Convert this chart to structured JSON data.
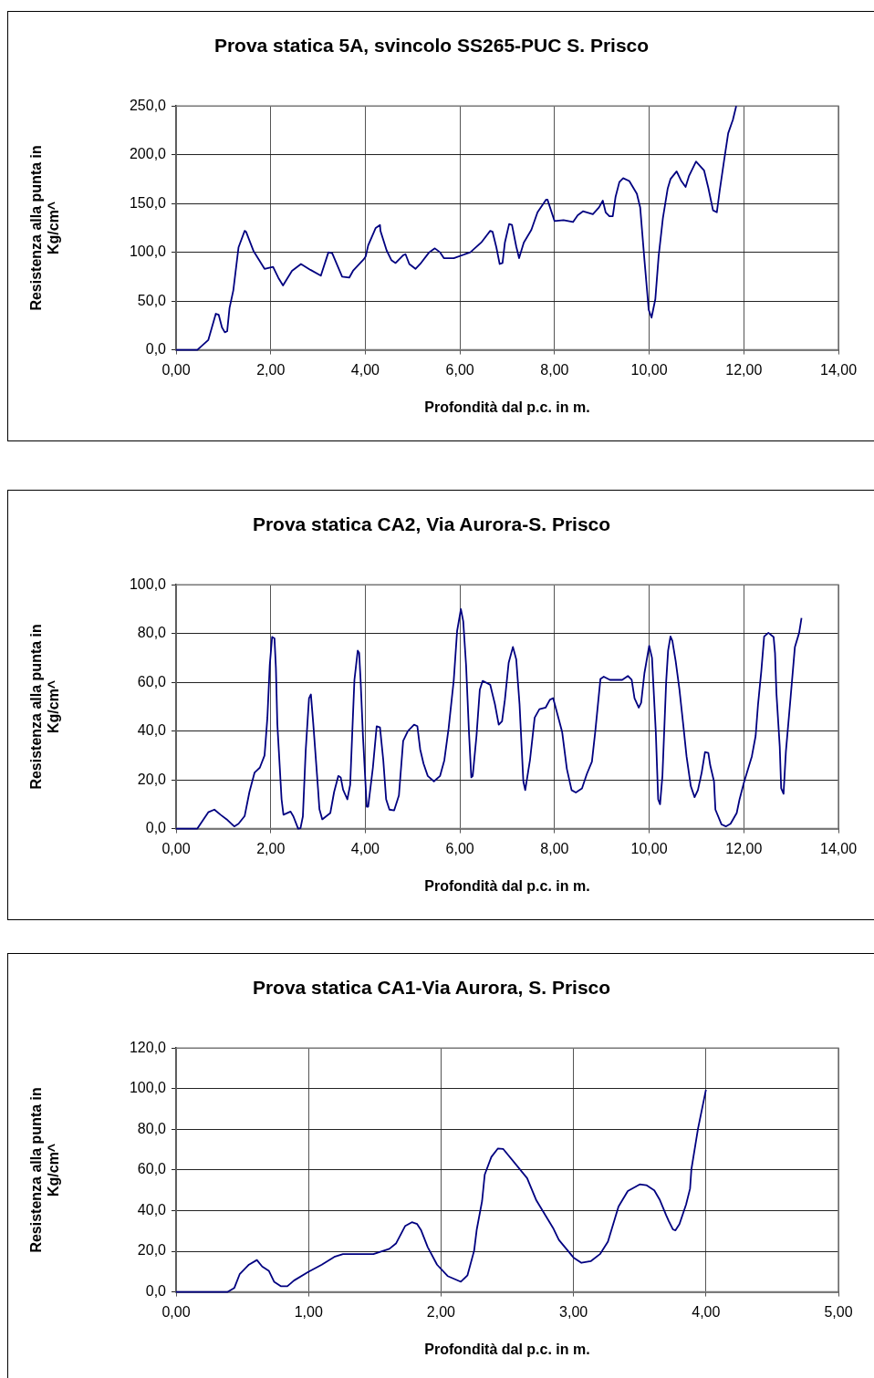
{
  "chart_data": [
    {
      "type": "line",
      "title": "Prova statica 5A, svincolo SS265-PUC S. Prisco",
      "xlabel": "Profondità dal p.c. in m.",
      "ylabel": "Resistenza alla punta in Kg/cm^",
      "color": "#000080",
      "marker": "none",
      "grid": true,
      "x": [
        0,
        0.45,
        0.68,
        0.84,
        0.9,
        0.97,
        1.03,
        1.08,
        1.13,
        1.21,
        1.32,
        1.45,
        1.48,
        1.64,
        1.87,
        2.05,
        2.16,
        2.26,
        2.45,
        2.64,
        2.84,
        3.06,
        3.22,
        3.3,
        3.51,
        3.66,
        3.74,
        3.97,
        4.01,
        4.06,
        4.22,
        4.31,
        4.32,
        4.45,
        4.55,
        4.64,
        4.8,
        4.85,
        4.93,
        5.06,
        5.16,
        5.35,
        5.47,
        5.58,
        5.66,
        5.87,
        6.22,
        6.45,
        6.64,
        6.69,
        6.77,
        6.84,
        6.9,
        6.95,
        7.04,
        7.1,
        7.19,
        7.25,
        7.35,
        7.51,
        7.64,
        7.82,
        7.85,
        8.0,
        8.19,
        8.39,
        8.49,
        8.6,
        8.81,
        8.94,
        9.02,
        9.08,
        9.16,
        9.23,
        9.29,
        9.37,
        9.45,
        9.58,
        9.74,
        9.81,
        9.9,
        9.99,
        10.05,
        10.13,
        10.2,
        10.29,
        10.39,
        10.45,
        10.58,
        10.68,
        10.77,
        10.84,
        10.99,
        11.16,
        11.25,
        11.35,
        11.43,
        11.49,
        11.58,
        11.67,
        11.77,
        11.84
      ],
      "values": [
        0,
        0,
        10,
        37,
        36,
        23,
        18,
        19,
        43,
        61,
        105,
        122,
        121,
        101,
        83,
        85,
        74,
        66,
        81,
        88,
        82,
        76,
        100,
        99,
        75,
        74,
        81,
        93,
        96,
        107,
        125,
        128,
        122,
        102,
        92,
        89,
        97,
        98,
        88,
        83,
        88,
        100,
        104,
        100,
        94,
        94,
        100,
        110,
        122,
        121,
        105,
        88,
        89,
        110,
        129,
        128,
        106,
        94,
        110,
        123,
        141,
        154,
        154,
        132,
        133,
        131,
        138,
        142,
        139,
        146,
        153,
        141,
        137,
        137,
        157,
        172,
        176,
        173,
        160,
        146,
        92,
        41,
        33,
        52,
        96,
        135,
        165,
        175,
        183,
        173,
        167,
        178,
        193,
        184,
        166,
        143,
        141,
        163,
        193,
        222,
        236,
        250
      ],
      "xlim": [
        0,
        14
      ],
      "xticks": [
        {
          "value": 0,
          "label": "0,00"
        },
        {
          "value": 2,
          "label": "2,00"
        },
        {
          "value": 4,
          "label": "4,00"
        },
        {
          "value": 6,
          "label": "6,00"
        },
        {
          "value": 8,
          "label": "8,00"
        },
        {
          "value": 10,
          "label": "10,00"
        },
        {
          "value": 12,
          "label": "12,00"
        },
        {
          "value": 14,
          "label": "14,00"
        }
      ],
      "ylim": [
        0,
        250
      ],
      "yticks": [
        {
          "value": 0,
          "label": "0,0"
        },
        {
          "value": 50,
          "label": "50,0"
        },
        {
          "value": 100,
          "label": "100,0"
        },
        {
          "value": 150,
          "label": "150,0"
        },
        {
          "value": 200,
          "label": "200,0"
        },
        {
          "value": 250,
          "label": "250,0"
        }
      ]
    },
    {
      "type": "line",
      "title": "Prova statica CA2, Via Aurora-S. Prisco",
      "xlabel": "Profondità dal p.c. in m.",
      "ylabel": "Resistenza alla punta in Kg/cm^",
      "color": "#000080",
      "marker": "none",
      "grid": true,
      "x": [
        0,
        0.45,
        0.68,
        0.81,
        0.94,
        1.07,
        1.23,
        1.32,
        1.45,
        1.55,
        1.66,
        1.77,
        1.87,
        1.89,
        1.93,
        1.98,
        2.03,
        2.08,
        2.11,
        2.14,
        2.23,
        2.27,
        2.42,
        2.48,
        2.58,
        2.63,
        2.68,
        2.74,
        2.81,
        2.85,
        2.9,
        3.0,
        3.03,
        3.09,
        3.26,
        3.34,
        3.43,
        3.48,
        3.53,
        3.62,
        3.68,
        3.74,
        3.77,
        3.84,
        3.87,
        3.9,
        3.95,
        4.03,
        4.06,
        4.16,
        4.24,
        4.31,
        4.38,
        4.44,
        4.51,
        4.61,
        4.71,
        4.8,
        4.9,
        5.03,
        5.1,
        5.16,
        5.23,
        5.32,
        5.45,
        5.58,
        5.67,
        5.76,
        5.87,
        5.94,
        6.02,
        6.07,
        6.13,
        6.19,
        6.24,
        6.27,
        6.35,
        6.42,
        6.48,
        6.64,
        6.74,
        6.82,
        6.89,
        6.95,
        7.03,
        7.12,
        7.19,
        7.26,
        7.34,
        7.38,
        7.48,
        7.58,
        7.68,
        7.81,
        7.9,
        7.97,
        8.06,
        8.16,
        8.26,
        8.36,
        8.45,
        8.58,
        8.68,
        8.79,
        8.86,
        8.97,
        9.04,
        9.17,
        9.43,
        9.55,
        9.63,
        9.69,
        9.78,
        9.83,
        9.9,
        10.0,
        10.06,
        10.14,
        10.19,
        10.23,
        10.28,
        10.36,
        10.4,
        10.45,
        10.49,
        10.56,
        10.64,
        10.72,
        10.79,
        10.88,
        10.96,
        11.03,
        11.11,
        11.18,
        11.25,
        11.29,
        11.37,
        11.4,
        11.53,
        11.62,
        11.72,
        11.85,
        11.91,
        12.01,
        12.17,
        12.25,
        12.3,
        12.37,
        12.43,
        12.52,
        12.63,
        12.66,
        12.69,
        12.76,
        12.79,
        12.84,
        12.89,
        12.99,
        13.08,
        13.17,
        13.22
      ],
      "values": [
        0,
        0,
        6.7,
        7.8,
        5.7,
        3.8,
        0.9,
        2,
        5.2,
        15,
        23,
        25,
        30,
        35,
        45.5,
        67,
        78.6,
        78,
        66,
        43,
        12,
        5.7,
        7,
        5,
        0,
        0.2,
        5,
        32,
        53.5,
        55,
        43,
        16.5,
        8,
        3.8,
        6.4,
        15,
        21.6,
        21,
        16,
        12,
        18,
        47,
        61,
        73,
        72,
        61,
        38,
        9,
        9,
        25,
        42,
        41.5,
        28,
        12,
        7.8,
        7.5,
        13.6,
        36,
        40,
        42.6,
        42,
        32.5,
        26.7,
        21.6,
        19.4,
        21.6,
        28,
        41,
        61,
        81,
        90,
        85,
        67,
        40,
        21,
        21.6,
        38,
        57,
        60.6,
        59,
        51,
        42.6,
        44,
        52.8,
        68,
        74.5,
        69.4,
        51,
        19.4,
        15.8,
        28,
        45.5,
        49,
        49.6,
        52.8,
        53.5,
        47,
        39.7,
        24.5,
        15.8,
        14.8,
        16.5,
        22.3,
        27.5,
        39.7,
        61.4,
        62.3,
        61,
        61,
        62.6,
        61,
        53.5,
        49.6,
        51.6,
        63.8,
        75,
        70,
        39.7,
        12,
        10,
        21.6,
        60.6,
        73,
        78.8,
        77,
        68.7,
        57,
        42.6,
        29.6,
        17.4,
        12.9,
        15.8,
        23,
        31.4,
        31,
        26,
        19.4,
        7.8,
        1.7,
        0.9,
        2,
        6.4,
        12,
        19.4,
        29.6,
        38,
        50.7,
        64.6,
        78.8,
        80.3,
        78.6,
        72,
        55.5,
        33.6,
        16.5,
        14.3,
        31.7,
        54,
        74.5,
        80.3,
        86.4
      ],
      "xlim": [
        0,
        14
      ],
      "xticks": [
        {
          "value": 0,
          "label": "0,00"
        },
        {
          "value": 2,
          "label": "2,00"
        },
        {
          "value": 4,
          "label": "4,00"
        },
        {
          "value": 6,
          "label": "6,00"
        },
        {
          "value": 8,
          "label": "8,00"
        },
        {
          "value": 10,
          "label": "10,00"
        },
        {
          "value": 12,
          "label": "12,00"
        },
        {
          "value": 14,
          "label": "14,00"
        }
      ],
      "ylim": [
        0,
        100
      ],
      "yticks": [
        {
          "value": 0,
          "label": "0,0"
        },
        {
          "value": 20,
          "label": "20,0"
        },
        {
          "value": 40,
          "label": "40,0"
        },
        {
          "value": 60,
          "label": "60,0"
        },
        {
          "value": 80,
          "label": "80,0"
        },
        {
          "value": 100,
          "label": "100,0"
        }
      ]
    },
    {
      "type": "line",
      "title": "Prova statica CA1-Via Aurora, S. Prisco",
      "xlabel": "Profondità dal p.c. in m.",
      "ylabel": "Resistenza alla punta in Kg/cm^",
      "color": "#000080",
      "marker": "none",
      "grid": true,
      "x": [
        0,
        0.39,
        0.44,
        0.48,
        0.55,
        0.61,
        0.65,
        0.7,
        0.74,
        0.79,
        0.84,
        0.89,
        1.0,
        1.1,
        1.2,
        1.26,
        1.49,
        1.61,
        1.66,
        1.73,
        1.78,
        1.82,
        1.85,
        1.9,
        1.97,
        2.05,
        2.15,
        2.2,
        2.25,
        2.27,
        2.31,
        2.33,
        2.38,
        2.43,
        2.47,
        2.65,
        2.72,
        2.85,
        2.89,
        3.0,
        3.06,
        3.13,
        3.2,
        3.26,
        3.34,
        3.41,
        3.5,
        3.55,
        3.61,
        3.65,
        3.7,
        3.72,
        3.75,
        3.77,
        3.8,
        3.85,
        3.88,
        3.89,
        3.94,
        4.0
      ],
      "values": [
        0,
        0,
        2,
        8.7,
        13.4,
        15.7,
        12.5,
        10.4,
        5,
        2.8,
        2.8,
        5.6,
        9.9,
        13.4,
        17.4,
        18.6,
        18.6,
        21.2,
        23.8,
        32.5,
        34.3,
        33.4,
        30.3,
        22,
        13.4,
        7.8,
        5,
        8.2,
        20.3,
        30.8,
        44.7,
        57.7,
        66.4,
        70.6,
        70.3,
        56,
        45,
        31,
        25.6,
        16.9,
        14.3,
        15.1,
        18.6,
        24.7,
        42,
        49.6,
        52.9,
        52.5,
        50,
        45.5,
        37.7,
        34.8,
        30.8,
        30.3,
        33.4,
        43,
        50.8,
        60.3,
        80.3,
        99.5
      ],
      "xlim": [
        0,
        5
      ],
      "xticks": [
        {
          "value": 0,
          "label": "0,00"
        },
        {
          "value": 1,
          "label": "1,00"
        },
        {
          "value": 2,
          "label": "2,00"
        },
        {
          "value": 3,
          "label": "3,00"
        },
        {
          "value": 4,
          "label": "4,00"
        },
        {
          "value": 5,
          "label": "5,00"
        }
      ],
      "ylim": [
        0,
        120
      ],
      "yticks": [
        {
          "value": 0,
          "label": "0,0"
        },
        {
          "value": 20,
          "label": "20,0"
        },
        {
          "value": 40,
          "label": "40,0"
        },
        {
          "value": 60,
          "label": "60,0"
        },
        {
          "value": 80,
          "label": "80,0"
        },
        {
          "value": 100,
          "label": "100,0"
        },
        {
          "value": 120,
          "label": "120,0"
        }
      ]
    }
  ]
}
